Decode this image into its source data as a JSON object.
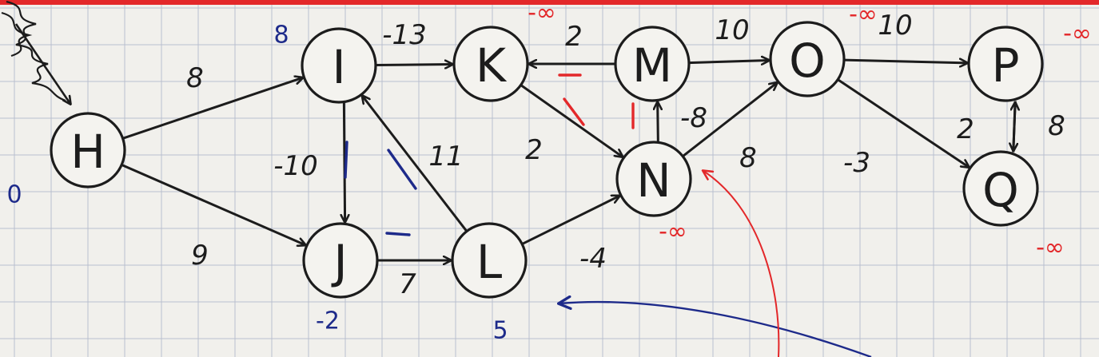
{
  "colors": {
    "ink": "#1c1c1c",
    "red": "#e3282a",
    "blue": "#1d2a8a",
    "paper": "#f1f0ec",
    "grid": "#b9bfcf"
  },
  "nodes": [
    {
      "id": "H",
      "label": "H"
    },
    {
      "id": "I",
      "label": "I"
    },
    {
      "id": "J",
      "label": "J"
    },
    {
      "id": "K",
      "label": "K"
    },
    {
      "id": "L",
      "label": "L"
    },
    {
      "id": "M",
      "label": "M"
    },
    {
      "id": "N",
      "label": "N"
    },
    {
      "id": "O",
      "label": "O"
    },
    {
      "id": "P",
      "label": "P"
    },
    {
      "id": "Q",
      "label": "Q"
    }
  ],
  "edges": [
    {
      "from": "H",
      "to": "I",
      "weight": "8"
    },
    {
      "from": "H",
      "to": "J",
      "weight": "9"
    },
    {
      "from": "I",
      "to": "K",
      "weight": "-13"
    },
    {
      "from": "I",
      "to": "J",
      "weight": "-10"
    },
    {
      "from": "L",
      "to": "I",
      "weight": "11"
    },
    {
      "from": "J",
      "to": "L",
      "weight": "7"
    },
    {
      "from": "M",
      "to": "K",
      "weight": "2"
    },
    {
      "from": "K",
      "to": "N",
      "weight": "2"
    },
    {
      "from": "L",
      "to": "N",
      "weight": "-4"
    },
    {
      "from": "N",
      "to": "M",
      "weight": "-8"
    },
    {
      "from": "M",
      "to": "O",
      "weight": "10"
    },
    {
      "from": "N",
      "to": "O",
      "weight": "8"
    },
    {
      "from": "O",
      "to": "P",
      "weight": "10"
    },
    {
      "from": "O",
      "to": "Q",
      "weight": "-3"
    },
    {
      "from": "P",
      "to": "Q",
      "weight": "2"
    },
    {
      "from": "Q",
      "to": "P",
      "weight": "8"
    }
  ],
  "distances": [
    {
      "node": "H",
      "value": "0",
      "color": "blue"
    },
    {
      "node": "I",
      "value": "8",
      "color": "blue"
    },
    {
      "node": "J",
      "value": "-2",
      "color": "blue"
    },
    {
      "node": "L",
      "value": "5",
      "color": "blue"
    },
    {
      "node": "K",
      "value": "-∞",
      "color": "red"
    },
    {
      "node": "N",
      "value": "-∞",
      "color": "red"
    },
    {
      "node": "O",
      "value": "-∞",
      "color": "red"
    },
    {
      "node": "P",
      "value": "-∞",
      "color": "red"
    },
    {
      "node": "Q",
      "value": "-∞",
      "color": "red"
    }
  ]
}
